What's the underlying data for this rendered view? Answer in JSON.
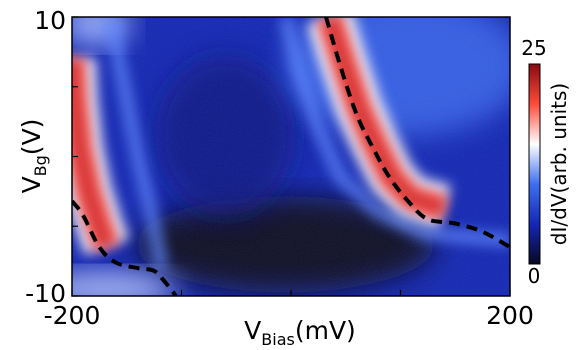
{
  "chart_data": {
    "type": "heatmap",
    "title": "",
    "xlabel": {
      "main": "V",
      "sub": "Bias",
      "unit": "(mV)"
    },
    "ylabel": {
      "main": "V",
      "sub": "Bg",
      "unit": "(V)"
    },
    "xlim": [
      -200,
      200
    ],
    "ylim": [
      -10,
      10
    ],
    "x_tick_labels": [
      "-200",
      "200"
    ],
    "y_tick_labels": [
      "10",
      "-10"
    ],
    "colorbar": {
      "label": "dI/dV(arb. units)",
      "range": [
        0,
        25
      ],
      "tick_labels": [
        "25",
        "0"
      ],
      "colors": [
        "#080820",
        "#1526b8",
        "#3f6ff0",
        "#ffffff",
        "#ff4a3a",
        "#8a0a12"
      ]
    },
    "dashed_curves": [
      {
        "points": [
          [
            -200,
            -3.2
          ],
          [
            -190,
            -4.2
          ],
          [
            -175,
            -6.5
          ],
          [
            -160,
            -7.6
          ],
          [
            -140,
            -8.0
          ],
          [
            -125,
            -8.2
          ],
          [
            -115,
            -9.0
          ],
          [
            -105,
            -10.0
          ]
        ]
      },
      {
        "points": [
          [
            32,
            10.0
          ],
          [
            45,
            6.5
          ],
          [
            60,
            3.0
          ],
          [
            75,
            0.6
          ],
          [
            90,
            -1.5
          ],
          [
            108,
            -3.3
          ],
          [
            125,
            -4.5
          ],
          [
            150,
            -4.8
          ],
          [
            175,
            -5.4
          ],
          [
            200,
            -6.5
          ]
        ]
      }
    ],
    "features": [
      {
        "type": "red-band",
        "points": [
          [
            -200,
            7.0
          ],
          [
            -198,
            4.0
          ],
          [
            -193,
            0.5
          ],
          [
            -185,
            -2.5
          ],
          [
            -175,
            -5.0
          ],
          [
            -168,
            -6.5
          ]
        ]
      },
      {
        "type": "red-band",
        "points": [
          [
            35,
            10.0
          ],
          [
            47,
            7.0
          ],
          [
            62,
            3.5
          ],
          [
            76,
            1.0
          ],
          [
            92,
            -1.5
          ],
          [
            110,
            -3.0
          ],
          [
            140,
            -3.7
          ]
        ]
      },
      {
        "type": "light-ridge",
        "points": [
          [
            -165,
            10.0
          ],
          [
            -150,
            4.0
          ],
          [
            -140,
            0.0
          ],
          [
            -128,
            -4.0
          ],
          [
            -118,
            -8.0
          ]
        ]
      },
      {
        "type": "light-ridge",
        "points": [
          [
            -5,
            10.0
          ],
          [
            8,
            6.0
          ],
          [
            25,
            2.0
          ],
          [
            45,
            -1.5
          ],
          [
            80,
            -4.0
          ],
          [
            120,
            -5.5
          ],
          [
            200,
            -6.0
          ]
        ]
      }
    ]
  }
}
